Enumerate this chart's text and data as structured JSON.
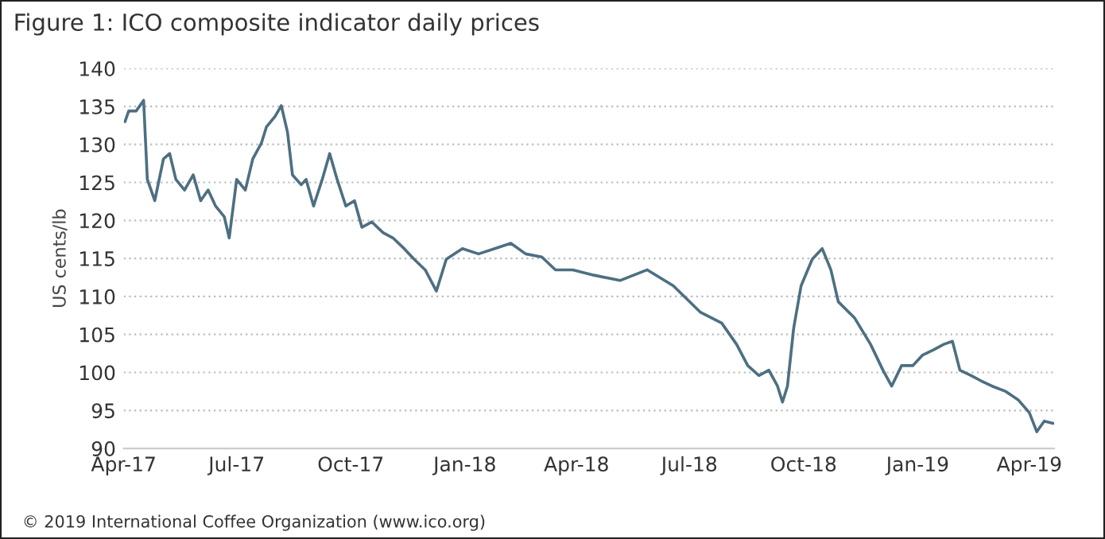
{
  "chart_data": {
    "type": "line",
    "title": "Figure 1: ICO composite indicator daily prices",
    "ylabel": "US cents/lb",
    "annotations": [
      "© 2019 International Coffee Organization (www.ico.org)"
    ],
    "x": [
      "2017-04-02",
      "2017-04-05",
      "2017-04-11",
      "2017-04-17",
      "2017-04-20",
      "2017-04-26",
      "2017-05-03",
      "2017-05-08",
      "2017-05-13",
      "2017-05-20",
      "2017-05-27",
      "2017-06-02",
      "2017-06-08",
      "2017-06-14",
      "2017-06-21",
      "2017-06-25",
      "2017-07-01",
      "2017-07-08",
      "2017-07-14",
      "2017-07-21",
      "2017-07-25",
      "2017-08-01",
      "2017-08-06",
      "2017-08-11",
      "2017-08-15",
      "2017-08-22",
      "2017-08-26",
      "2017-09-01",
      "2017-09-08",
      "2017-09-14",
      "2017-09-20",
      "2017-09-27",
      "2017-10-04",
      "2017-10-10",
      "2017-10-18",
      "2017-10-27",
      "2017-11-04",
      "2017-11-13",
      "2017-11-21",
      "2017-11-30",
      "2017-12-09",
      "2017-12-17",
      "2017-12-30",
      "2018-01-12",
      "2018-01-25",
      "2018-02-07",
      "2018-02-19",
      "2018-03-04",
      "2018-03-15",
      "2018-03-29",
      "2018-04-15",
      "2018-05-06",
      "2018-05-28",
      "2018-06-18",
      "2018-07-10",
      "2018-07-27",
      "2018-08-08",
      "2018-08-17",
      "2018-08-26",
      "2018-09-03",
      "2018-09-10",
      "2018-09-14",
      "2018-09-18",
      "2018-09-23",
      "2018-09-29",
      "2018-10-08",
      "2018-10-16",
      "2018-10-23",
      "2018-10-29",
      "2018-11-11",
      "2018-11-24",
      "2018-12-04",
      "2018-12-11",
      "2018-12-19",
      "2018-12-28",
      "2019-01-05",
      "2019-01-14",
      "2019-01-22",
      "2019-01-29",
      "2019-02-04",
      "2019-02-13",
      "2019-02-21",
      "2019-03-02",
      "2019-03-13",
      "2019-03-23",
      "2019-04-01",
      "2019-04-07",
      "2019-04-13",
      "2019-04-20"
    ],
    "series": [
      {
        "color": "#4d6f82",
        "values": [
          133.0,
          134.4,
          134.4,
          135.8,
          125.4,
          122.6,
          128.1,
          128.8,
          125.4,
          124.0,
          126.0,
          122.6,
          124.0,
          121.9,
          120.5,
          117.7,
          125.4,
          124.0,
          128.1,
          130.2,
          132.3,
          133.7,
          135.1,
          131.6,
          126.0,
          124.7,
          125.4,
          121.9,
          125.4,
          128.8,
          125.4,
          121.9,
          122.6,
          119.1,
          119.8,
          118.4,
          117.7,
          116.3,
          114.9,
          113.5,
          110.7,
          114.9,
          116.3,
          115.6,
          116.3,
          117.0,
          115.6,
          115.2,
          113.5,
          113.5,
          112.8,
          112.1,
          113.5,
          111.4,
          107.9,
          106.5,
          103.7,
          100.9,
          99.6,
          100.3,
          98.2,
          96.1,
          98.2,
          105.8,
          111.4,
          114.9,
          116.3,
          113.5,
          109.3,
          107.2,
          103.7,
          100.3,
          98.2,
          100.9,
          100.9,
          102.3,
          103.0,
          103.7,
          104.1,
          100.3,
          99.6,
          98.9,
          98.2,
          97.5,
          96.4,
          94.7,
          92.2,
          93.6,
          93.3
        ]
      }
    ],
    "xlim": [
      "2017-04-01",
      "2019-04-21"
    ],
    "xticks": [
      {
        "value": "2017-04-01",
        "label": "Apr-17"
      },
      {
        "value": "2017-07-01",
        "label": "Jul-17"
      },
      {
        "value": "2017-10-01",
        "label": "Oct-17"
      },
      {
        "value": "2018-01-01",
        "label": "Jan-18"
      },
      {
        "value": "2018-04-01",
        "label": "Apr-18"
      },
      {
        "value": "2018-07-01",
        "label": "Jul-18"
      },
      {
        "value": "2018-10-01",
        "label": "Oct-18"
      },
      {
        "value": "2019-01-01",
        "label": "Jan-19"
      },
      {
        "value": "2019-04-01",
        "label": "Apr-19"
      }
    ],
    "ylim": [
      90,
      140
    ],
    "yticks": [
      90,
      95,
      100,
      105,
      110,
      115,
      120,
      125,
      130,
      135,
      140
    ],
    "grid": "y",
    "legend": false,
    "marker": "none",
    "line_style": "solid"
  }
}
